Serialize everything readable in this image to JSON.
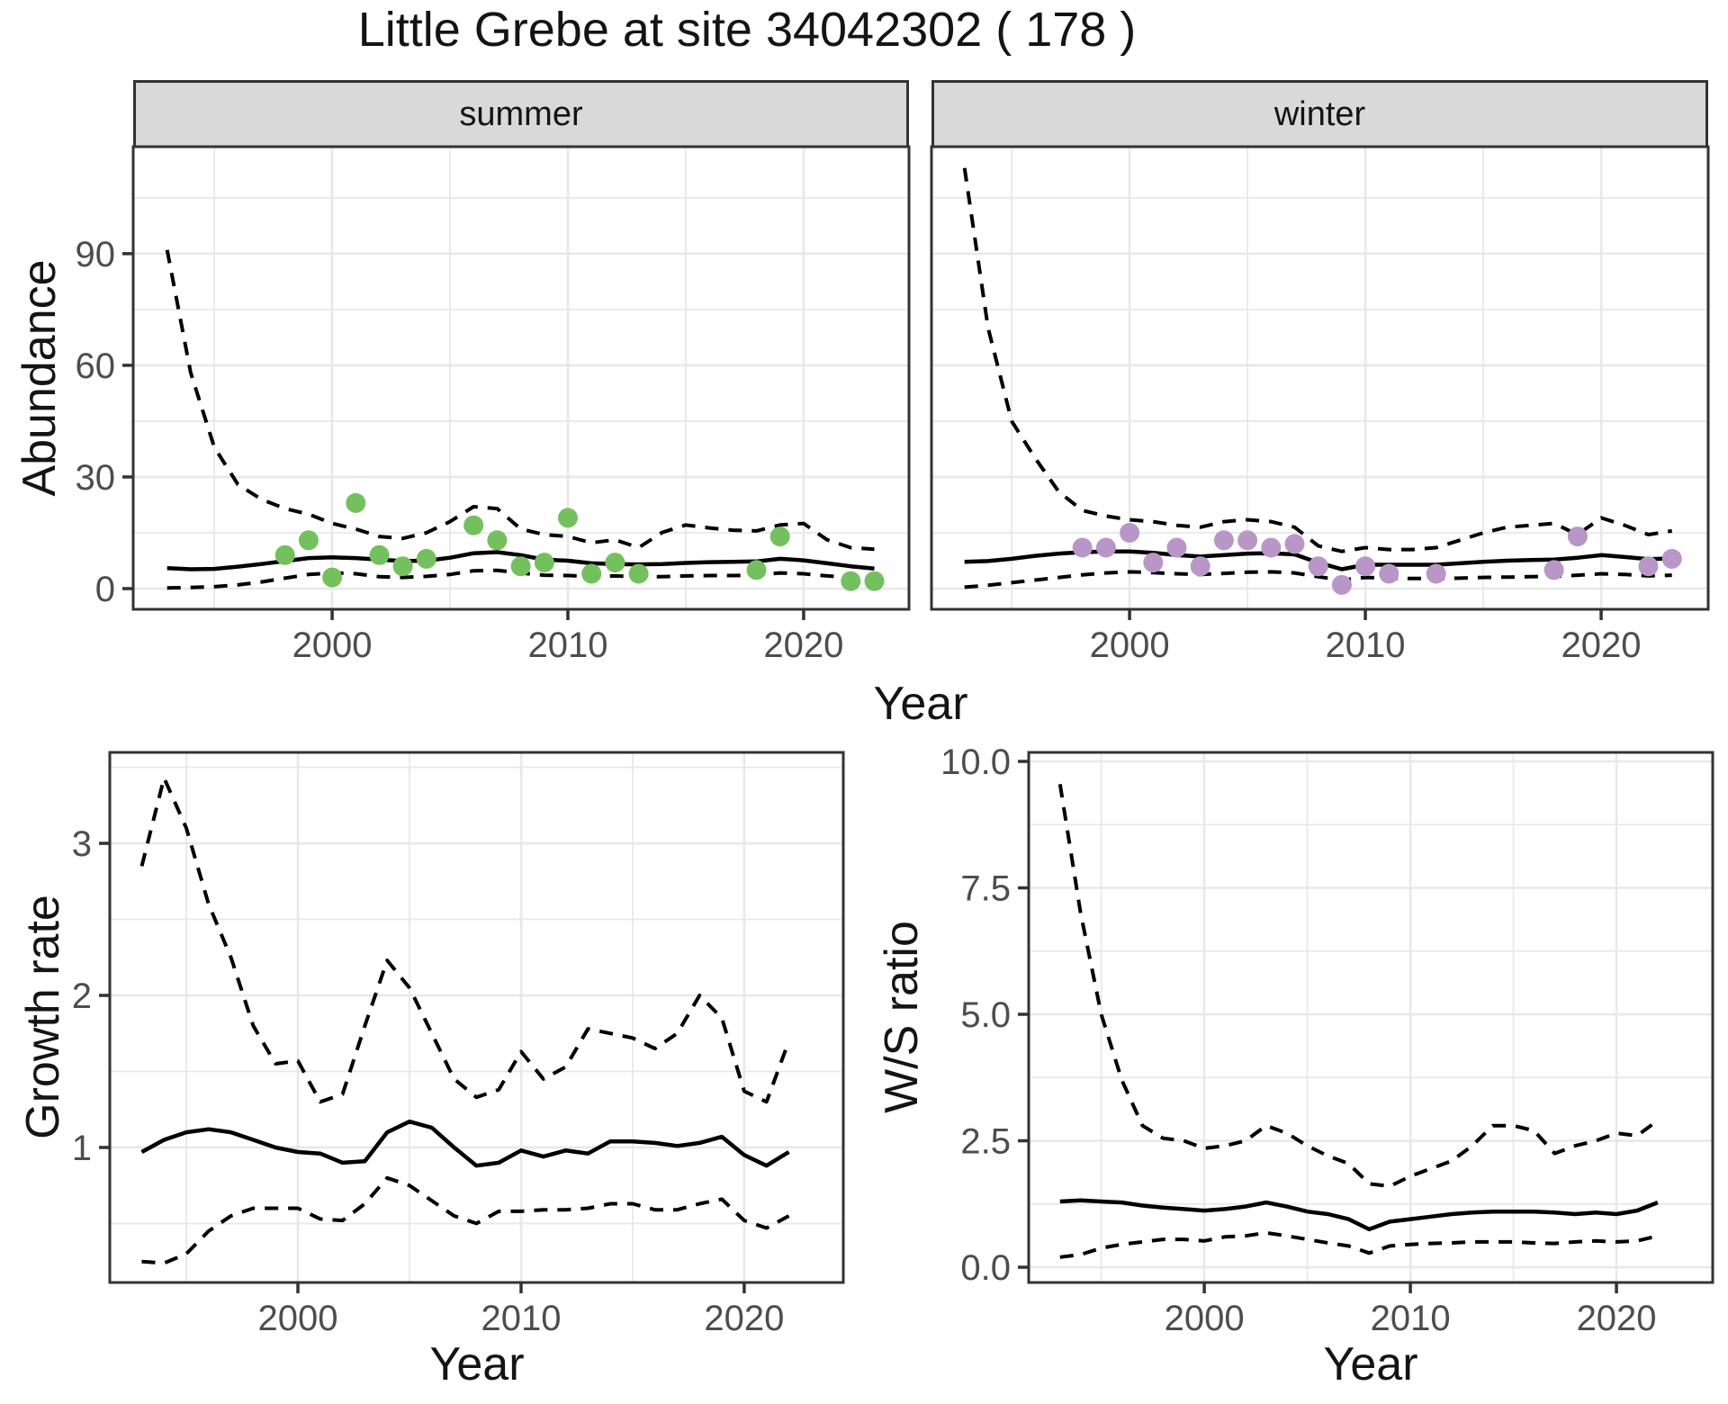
{
  "title": "Little Grebe at site 34042302 ( 178 )",
  "axis_titles": {
    "abundance": "Abundance",
    "year": "Year",
    "growth_rate": "Growth rate",
    "ws_ratio": "W/S ratio"
  },
  "colors": {
    "summer_point": "#74C05E",
    "winter_point": "#B996C8",
    "line": "#000000",
    "grid": "#E8E8E8",
    "panel_border": "#333333",
    "tick_label": "#4D4D4D",
    "strip_bg": "#D9D9D9"
  },
  "chart_data": [
    {
      "type": "line",
      "panel": "abundance-summer",
      "facet_label": "summer",
      "xlabel": "Year",
      "ylabel": "Abundance",
      "x_ticks": {
        "values": [
          2000,
          2010,
          2020
        ],
        "labels": [
          "2000",
          "2010",
          "2020"
        ]
      },
      "y_ticks": {
        "values": [
          0,
          30,
          60,
          90
        ],
        "labels": [
          "0",
          "30",
          "60",
          "90"
        ]
      },
      "xlim": [
        1991.56,
        2024.47
      ],
      "ylim": [
        -5.56,
        118.74
      ],
      "grid": true,
      "legend": "none",
      "years": [
        1993,
        1994,
        1995,
        1996,
        1997,
        1998,
        1999,
        2000,
        2001,
        2002,
        2003,
        2004,
        2005,
        2006,
        2007,
        2008,
        2009,
        2010,
        2011,
        2012,
        2013,
        2014,
        2015,
        2016,
        2017,
        2018,
        2019,
        2020,
        2021,
        2022,
        2023
      ],
      "series": [
        {
          "name": "upper-ci",
          "style": "dashed",
          "values": [
            91,
            58,
            38,
            28,
            24,
            21.5,
            20,
            17.5,
            16,
            14,
            13.5,
            15,
            18,
            22,
            21.5,
            16,
            14.5,
            14,
            12.3,
            13.1,
            11,
            15.1,
            17.1,
            16.3,
            15.7,
            15.5,
            17.1,
            17.5,
            13.1,
            11,
            10.6
          ]
        },
        {
          "name": "fit",
          "style": "solid",
          "values": [
            5.5,
            5.2,
            5.3,
            5.9,
            6.6,
            7.4,
            8.2,
            8.4,
            8.2,
            7.8,
            7.4,
            7.5,
            8.3,
            9.5,
            9.8,
            9,
            7.8,
            7.5,
            6.8,
            6.6,
            6.5,
            6.6,
            6.9,
            7.1,
            7.2,
            7.3,
            8,
            7.6,
            6.8,
            6,
            5.4
          ]
        },
        {
          "name": "lower-ci",
          "style": "dashed",
          "values": [
            0.2,
            0.3,
            0.5,
            1,
            1.8,
            2.8,
            3.8,
            4.2,
            4,
            3.2,
            3,
            3.3,
            3.8,
            4.8,
            4.9,
            4.2,
            3.6,
            3.5,
            3.3,
            3.4,
            3.2,
            3.2,
            3.4,
            3.5,
            3.5,
            3.6,
            4.2,
            4,
            3.4,
            3,
            2.8
          ]
        }
      ],
      "observations": [
        [
          1998,
          9
        ],
        [
          1999,
          13
        ],
        [
          2000,
          3
        ],
        [
          2001,
          23
        ],
        [
          2002,
          9
        ],
        [
          2003,
          6
        ],
        [
          2004,
          8
        ],
        [
          2006,
          17
        ],
        [
          2007,
          13
        ],
        [
          2008,
          6
        ],
        [
          2009,
          7
        ],
        [
          2010,
          19
        ],
        [
          2011,
          4
        ],
        [
          2012,
          7
        ],
        [
          2013,
          4
        ],
        [
          2018,
          5
        ],
        [
          2019,
          14
        ],
        [
          2022,
          2
        ],
        [
          2023,
          2
        ]
      ],
      "point_color": "#74C05E"
    },
    {
      "type": "line",
      "panel": "abundance-winter",
      "facet_label": "winter",
      "xlabel": "Year",
      "ylabel": "Abundance",
      "x_ticks": {
        "values": [
          2000,
          2010,
          2020
        ],
        "labels": [
          "2000",
          "2010",
          "2020"
        ]
      },
      "y_ticks": {
        "values": [
          0,
          30,
          60,
          90
        ],
        "labels": [
          "0",
          "30",
          "60",
          "90"
        ]
      },
      "xlim": [
        1991.6,
        2024.54
      ],
      "ylim": [
        -5.56,
        118.74
      ],
      "grid": true,
      "legend": "none",
      "years": [
        1993,
        1994,
        1995,
        1996,
        1997,
        1998,
        1999,
        2000,
        2001,
        2002,
        2003,
        2004,
        2005,
        2006,
        2007,
        2008,
        2009,
        2010,
        2011,
        2012,
        2013,
        2014,
        2015,
        2016,
        2017,
        2018,
        2019,
        2020,
        2021,
        2022,
        2023
      ],
      "series": [
        {
          "name": "upper-ci",
          "style": "dashed",
          "values": [
            113,
            70,
            45,
            35,
            26,
            21,
            19.5,
            18.5,
            18,
            17,
            16.5,
            18,
            18.5,
            18,
            16.5,
            11.5,
            10,
            11,
            10.5,
            10.5,
            11,
            13,
            15,
            16.5,
            17,
            17.5,
            14.5,
            19,
            17,
            14.5,
            15.5
          ]
        },
        {
          "name": "fit",
          "style": "solid",
          "values": [
            7.2,
            7.4,
            8,
            8.8,
            9.4,
            9.8,
            10,
            10,
            9.6,
            9,
            8.6,
            9,
            9.4,
            9.5,
            9.2,
            7,
            5.2,
            6.4,
            6.4,
            6.4,
            6.4,
            6.8,
            7.2,
            7.5,
            7.7,
            7.8,
            8.3,
            9,
            8.5,
            7.9,
            8.1
          ]
        },
        {
          "name": "lower-ci",
          "style": "dashed",
          "values": [
            0.4,
            0.9,
            1.6,
            2.3,
            3,
            3.7,
            4.2,
            4.5,
            4.3,
            4,
            3.8,
            4.1,
            4.4,
            4.5,
            4.2,
            3.2,
            2.3,
            3,
            2.8,
            2.7,
            2.7,
            2.8,
            3,
            3.1,
            3.2,
            3.3,
            3.6,
            4,
            3.8,
            3.4,
            3.6
          ]
        }
      ],
      "observations": [
        [
          1998,
          11
        ],
        [
          1999,
          11
        ],
        [
          2000,
          15
        ],
        [
          2001,
          7
        ],
        [
          2002,
          11
        ],
        [
          2003,
          6
        ],
        [
          2004,
          13
        ],
        [
          2005,
          13
        ],
        [
          2006,
          11
        ],
        [
          2007,
          12
        ],
        [
          2008,
          6
        ],
        [
          2009,
          1
        ],
        [
          2010,
          6
        ],
        [
          2011,
          4
        ],
        [
          2013,
          4
        ],
        [
          2018,
          5
        ],
        [
          2019,
          14
        ],
        [
          2022,
          6
        ],
        [
          2023,
          8
        ]
      ],
      "point_color": "#B996C8"
    },
    {
      "type": "line",
      "panel": "growth-rate",
      "facet_label": "",
      "xlabel": "Year",
      "ylabel": "Growth rate",
      "x_ticks": {
        "values": [
          2000,
          2010,
          2020
        ],
        "labels": [
          "2000",
          "2010",
          "2020"
        ]
      },
      "y_ticks": {
        "values": [
          1,
          2,
          3
        ],
        "labels": [
          "1",
          "2",
          "3"
        ]
      },
      "xlim": [
        1991.57,
        2024.44
      ],
      "ylim": [
        0.112,
        3.598
      ],
      "grid": true,
      "legend": "none",
      "years": [
        1993,
        1994,
        1995,
        1996,
        1997,
        1998,
        1999,
        2000,
        2001,
        2002,
        2003,
        2004,
        2005,
        2006,
        2007,
        2008,
        2009,
        2010,
        2011,
        2012,
        2013,
        2014,
        2015,
        2016,
        2017,
        2018,
        2019,
        2020,
        2021,
        2022
      ],
      "series": [
        {
          "name": "upper-ci",
          "style": "dashed",
          "values": [
            2.85,
            3.43,
            3.1,
            2.6,
            2.25,
            1.8,
            1.55,
            1.57,
            1.3,
            1.35,
            1.8,
            2.23,
            2.05,
            1.75,
            1.45,
            1.33,
            1.38,
            1.63,
            1.45,
            1.53,
            1.78,
            1.75,
            1.72,
            1.65,
            1.75,
            2,
            1.85,
            1.37,
            1.3,
            1.7
          ]
        },
        {
          "name": "fit",
          "style": "solid",
          "values": [
            0.97,
            1.05,
            1.1,
            1.12,
            1.1,
            1.05,
            1,
            0.97,
            0.96,
            0.9,
            0.91,
            1.1,
            1.17,
            1.13,
            1,
            0.88,
            0.9,
            0.98,
            0.94,
            0.98,
            0.96,
            1.04,
            1.04,
            1.03,
            1.01,
            1.03,
            1.07,
            0.95,
            0.88,
            0.97
          ]
        },
        {
          "name": "lower-ci",
          "style": "dashed",
          "values": [
            0.25,
            0.24,
            0.3,
            0.45,
            0.55,
            0.6,
            0.6,
            0.6,
            0.53,
            0.52,
            0.63,
            0.8,
            0.75,
            0.65,
            0.55,
            0.5,
            0.58,
            0.58,
            0.59,
            0.59,
            0.6,
            0.63,
            0.63,
            0.59,
            0.59,
            0.63,
            0.66,
            0.52,
            0.47,
            0.55
          ]
        }
      ],
      "observations": [],
      "point_color": ""
    },
    {
      "type": "line",
      "panel": "ws-ratio",
      "facet_label": "",
      "xlabel": "Year",
      "ylabel": "W/S ratio",
      "x_ticks": {
        "values": [
          2000,
          2010,
          2020
        ],
        "labels": [
          "2000",
          "2010",
          "2020"
        ]
      },
      "y_ticks": {
        "values": [
          0,
          2.5,
          5,
          7.5,
          10
        ],
        "labels": [
          "0.0",
          "2.5",
          "5.0",
          "7.5",
          "10.0"
        ]
      },
      "xlim": [
        1991.48,
        2024.67
      ],
      "ylim": [
        -0.302,
        10.178
      ],
      "grid": true,
      "legend": "none",
      "years": [
        1993,
        1994,
        1995,
        1996,
        1997,
        1998,
        1999,
        2000,
        2001,
        2002,
        2003,
        2004,
        2005,
        2006,
        2007,
        2008,
        2009,
        2010,
        2011,
        2012,
        2013,
        2014,
        2015,
        2016,
        2017,
        2018,
        2019,
        2020,
        2021,
        2022
      ],
      "series": [
        {
          "name": "upper-ci",
          "style": "dashed",
          "values": [
            9.55,
            7,
            5,
            3.7,
            2.8,
            2.55,
            2.5,
            2.35,
            2.4,
            2.5,
            2.8,
            2.65,
            2.4,
            2.2,
            2.05,
            1.65,
            1.6,
            1.8,
            1.95,
            2.1,
            2.4,
            2.8,
            2.8,
            2.7,
            2.25,
            2.4,
            2.5,
            2.65,
            2.6,
            2.9
          ]
        },
        {
          "name": "fit",
          "style": "solid",
          "values": [
            1.3,
            1.32,
            1.3,
            1.28,
            1.22,
            1.18,
            1.15,
            1.12,
            1.15,
            1.2,
            1.28,
            1.2,
            1.1,
            1.05,
            0.95,
            0.75,
            0.9,
            0.95,
            1,
            1.05,
            1.08,
            1.1,
            1.1,
            1.1,
            1.08,
            1.05,
            1.08,
            1.05,
            1.12,
            1.28
          ]
        },
        {
          "name": "lower-ci",
          "style": "dashed",
          "values": [
            0.2,
            0.25,
            0.38,
            0.45,
            0.5,
            0.55,
            0.55,
            0.52,
            0.6,
            0.62,
            0.68,
            0.62,
            0.55,
            0.48,
            0.42,
            0.28,
            0.42,
            0.45,
            0.47,
            0.48,
            0.5,
            0.5,
            0.5,
            0.48,
            0.47,
            0.5,
            0.52,
            0.5,
            0.52,
            0.62
          ]
        }
      ],
      "observations": [],
      "point_color": ""
    }
  ]
}
